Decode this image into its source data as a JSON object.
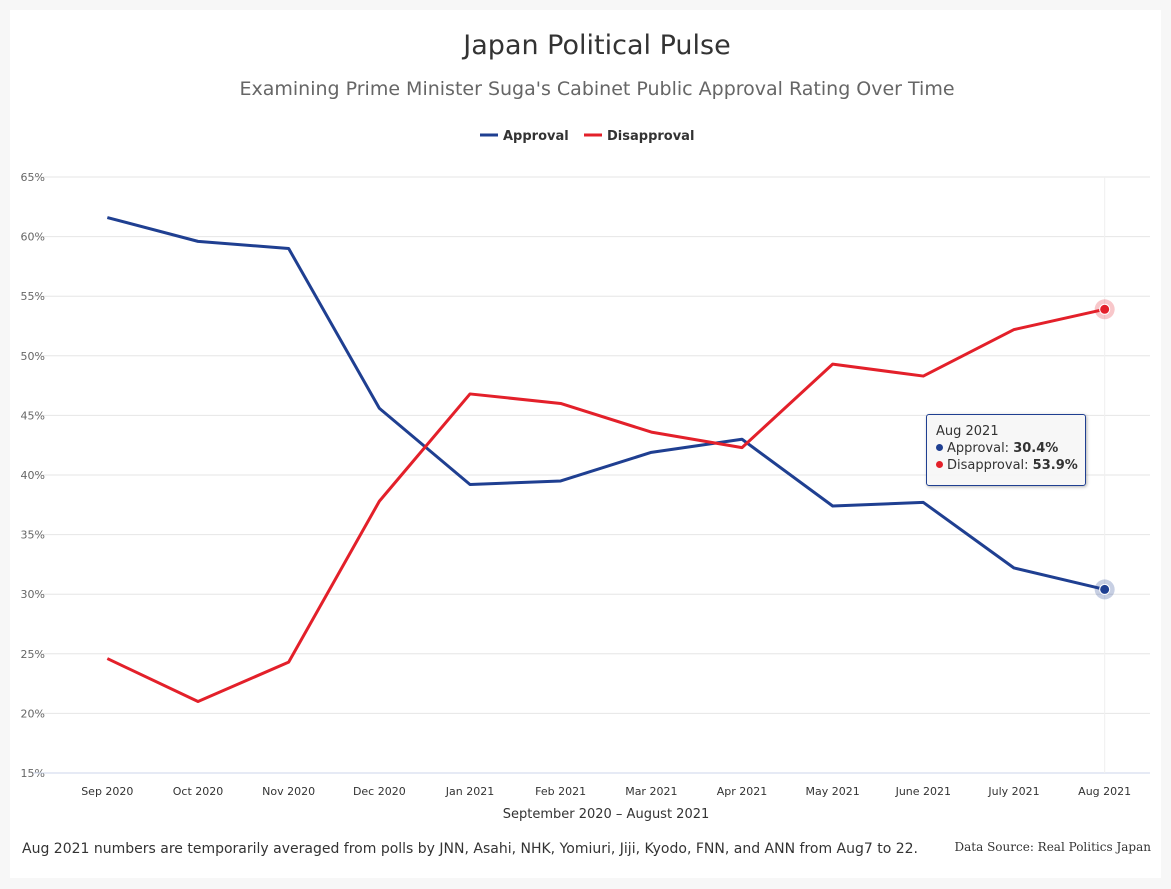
{
  "chart_data": {
    "type": "line",
    "title": "Japan Political Pulse",
    "subtitle": "Examining Prime Minister Suga's Cabinet Public Approval Rating Over Time",
    "xlabel": "September 2020 – August 2021",
    "ylabel": "",
    "categories": [
      "Sep 2020",
      "Oct 2020",
      "Nov 2020",
      "Dec 2020",
      "Jan 2021",
      "Feb 2021",
      "Mar 2021",
      "Apr 2021",
      "May 2021",
      "June 2021",
      "July 2021",
      "Aug 2021"
    ],
    "series": [
      {
        "name": "Approval",
        "color": "#1f3f91",
        "values": [
          61.6,
          59.6,
          59.0,
          45.6,
          39.2,
          39.5,
          41.9,
          43.0,
          37.4,
          37.7,
          32.2,
          30.4
        ]
      },
      {
        "name": "Disapproval",
        "color": "#e3202a",
        "values": [
          24.6,
          21.0,
          24.3,
          37.8,
          46.8,
          46.0,
          43.6,
          42.3,
          49.3,
          48.3,
          52.2,
          53.9
        ]
      }
    ],
    "ylim": [
      15,
      65
    ],
    "yticks": [
      "15%",
      "20%",
      "25%",
      "30%",
      "35%",
      "40%",
      "45%",
      "50%",
      "55%",
      "60%",
      "65%"
    ],
    "grid": true,
    "legend_position": "top-center",
    "tooltip": {
      "title": "Aug 2021",
      "rows": [
        {
          "label": "Approval:",
          "value": "30.4%"
        },
        {
          "label": "Disapproval:",
          "value": "53.9%"
        }
      ]
    }
  },
  "footer": {
    "note": "Aug 2021 numbers are temporarily averaged from polls by JNN, Asahi, NHK, Yomiuri, Jiji, Kyodo, FNN, and ANN from Aug7 to 22.",
    "source": "Data Source: Real Politics Japan"
  }
}
